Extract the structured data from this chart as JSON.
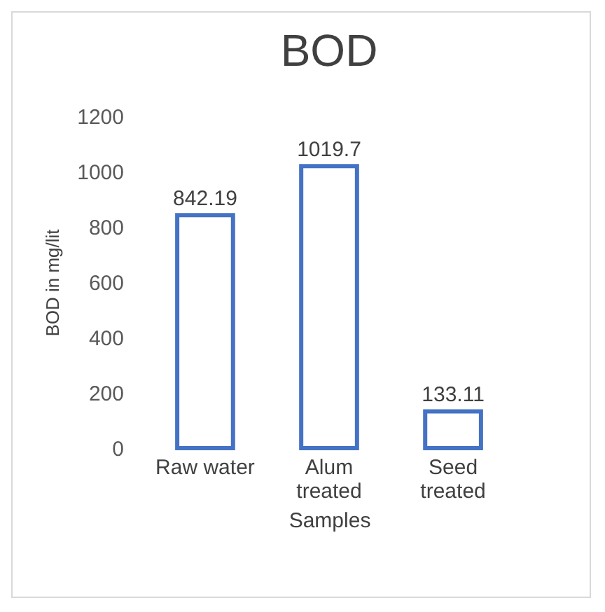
{
  "chart_data": {
    "type": "bar",
    "title": "BOD",
    "xlabel": "Samples",
    "ylabel": "BOD in mg/lit",
    "categories": [
      "Raw water",
      "Alum treated",
      "Seed treated"
    ],
    "values": [
      842.19,
      1019.7,
      133.11
    ],
    "color": "#4472c4",
    "ylim": [
      0,
      1200
    ],
    "yticks": [
      0,
      200,
      400,
      600,
      800,
      1000,
      1200
    ],
    "grid": false,
    "data_labels": true
  }
}
